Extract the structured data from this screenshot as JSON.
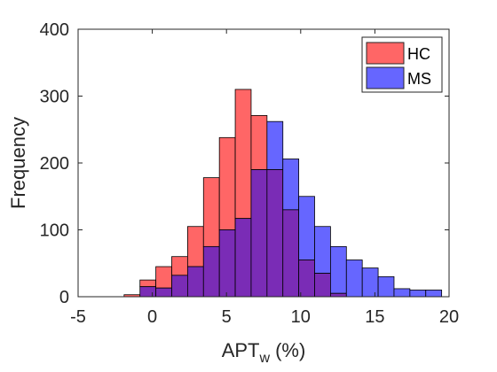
{
  "chart_data": {
    "type": "bar",
    "subtype": "overlapping-histogram",
    "title": "",
    "xlabel": "APT",
    "xlabel_subscript": "w",
    "xlabel_unit": "(%)",
    "ylabel": "Frequency",
    "xlim": [
      -5,
      20
    ],
    "ylim": [
      0,
      400
    ],
    "x_ticks": [
      -5,
      0,
      5,
      10,
      15,
      20
    ],
    "y_ticks": [
      0,
      100,
      200,
      300,
      400
    ],
    "grid": false,
    "legend_position": "top-right",
    "bin_width": 1.07,
    "bin_start": -1.9,
    "overlap_color": "#7a2cb6",
    "series": [
      {
        "name": "HC",
        "color": "#ff6666",
        "values": [
          3,
          25,
          45,
          60,
          105,
          178,
          238,
          310,
          271,
          190,
          130,
          55,
          35,
          5,
          0,
          0,
          0,
          0,
          0,
          0
        ]
      },
      {
        "name": "MS",
        "color": "#6666ff",
        "values": [
          0,
          15,
          13,
          32,
          45,
          75,
          100,
          117,
          190,
          262,
          206,
          150,
          105,
          75,
          55,
          43,
          30,
          12,
          10,
          10
        ]
      }
    ]
  }
}
